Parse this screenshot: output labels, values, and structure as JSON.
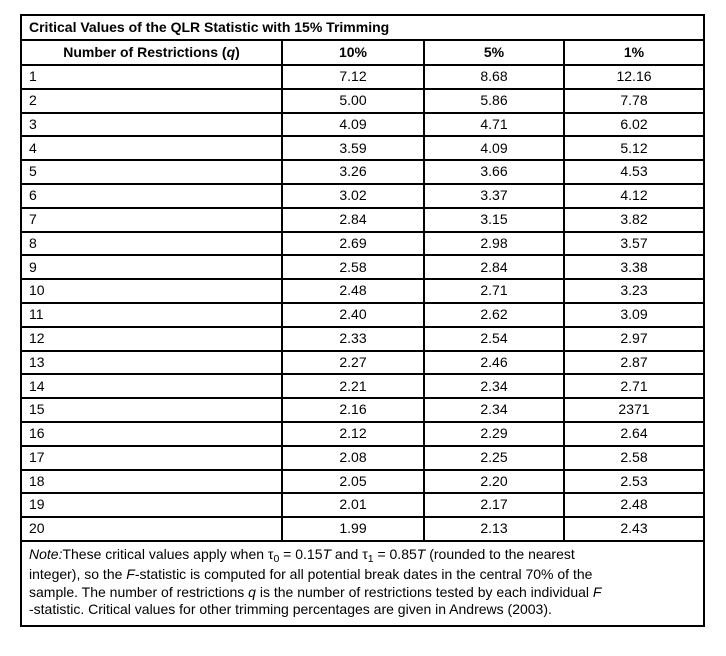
{
  "colors": {
    "background": "#ffffff",
    "border": "#000000",
    "text": "#000000"
  },
  "table": {
    "title": "Critical Values of the QLR Statistic with 15% Trimming",
    "header": {
      "restrictions_prefix": "Number of Restrictions (",
      "restrictions_symbol": "q",
      "restrictions_suffix": ")",
      "p10": "10%",
      "p5": "5%",
      "p1": "1%"
    },
    "rows": [
      {
        "q": "1",
        "p10": "7.12",
        "p5": "8.68",
        "p1": "12.16"
      },
      {
        "q": "2",
        "p10": "5.00",
        "p5": "5.86",
        "p1": "7.78"
      },
      {
        "q": "3",
        "p10": "4.09",
        "p5": "4.71",
        "p1": "6.02"
      },
      {
        "q": "4",
        "p10": "3.59",
        "p5": "4.09",
        "p1": "5.12"
      },
      {
        "q": "5",
        "p10": "3.26",
        "p5": "3.66",
        "p1": "4.53"
      },
      {
        "q": "6",
        "p10": "3.02",
        "p5": "3.37",
        "p1": "4.12"
      },
      {
        "q": "7",
        "p10": "2.84",
        "p5": "3.15",
        "p1": "3.82"
      },
      {
        "q": "8",
        "p10": "2.69",
        "p5": "2.98",
        "p1": "3.57"
      },
      {
        "q": "9",
        "p10": "2.58",
        "p5": "2.84",
        "p1": "3.38"
      },
      {
        "q": "10",
        "p10": "2.48",
        "p5": "2.71",
        "p1": "3.23"
      },
      {
        "q": "11",
        "p10": "2.40",
        "p5": "2.62",
        "p1": "3.09"
      },
      {
        "q": "12",
        "p10": "2.33",
        "p5": "2.54",
        "p1": "2.97"
      },
      {
        "q": "13",
        "p10": "2.27",
        "p5": "2.46",
        "p1": "2.87"
      },
      {
        "q": "14",
        "p10": "2.21",
        "p5": "2.34",
        "p1": "2.71"
      },
      {
        "q": "15",
        "p10": "2.16",
        "p5": "2.34",
        "p1": "2371"
      },
      {
        "q": "16",
        "p10": "2.12",
        "p5": "2.29",
        "p1": "2.64"
      },
      {
        "q": "17",
        "p10": "2.08",
        "p5": "2.25",
        "p1": "2.58"
      },
      {
        "q": "18",
        "p10": "2.05",
        "p5": "2.20",
        "p1": "2.53"
      },
      {
        "q": "19",
        "p10": "2.01",
        "p5": "2.17",
        "p1": "2.48"
      },
      {
        "q": "20",
        "p10": "1.99",
        "p5": "2.13",
        "p1": "2.43"
      }
    ]
  },
  "note": {
    "segments": [
      {
        "text": "Note:",
        "style": "italic"
      },
      {
        "text": "These critical values apply when "
      },
      {
        "text": "τ"
      },
      {
        "text": "0",
        "style": "sub"
      },
      {
        "text": " = 0.15"
      },
      {
        "text": "T",
        "style": "italic"
      },
      {
        "text": " and "
      },
      {
        "text": "τ"
      },
      {
        "text": "1",
        "style": "sub"
      },
      {
        "text": " = 0.85"
      },
      {
        "text": "T",
        "style": "italic"
      },
      {
        "text": " (rounded to the nearest"
      },
      {
        "break": true
      },
      {
        "text": "integer), so the "
      },
      {
        "text": "F",
        "style": "italic"
      },
      {
        "text": "-statistic is computed for all potential break dates in the central 70% of the"
      },
      {
        "break": true
      },
      {
        "text": "sample. The number of restrictions "
      },
      {
        "text": "q",
        "style": "italic"
      },
      {
        "text": " is the number of restrictions tested by each individual "
      },
      {
        "text": "F",
        "style": "italic"
      },
      {
        "break": true
      },
      {
        "text": "-statistic. Critical values for other trimming percentages are given in Andrews (2003)."
      }
    ]
  }
}
